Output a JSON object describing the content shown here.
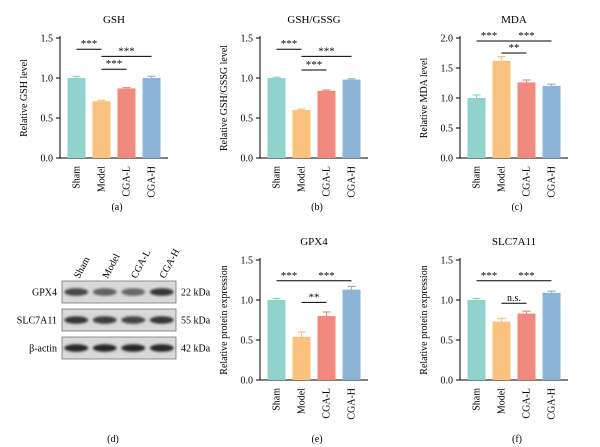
{
  "chart_data": [
    {
      "type": "bar",
      "panel_label": "(a)",
      "title": "GSH",
      "ylabel": "Relative GSH level",
      "categories": [
        "Sham",
        "Model",
        "CGA-L",
        "CGA-H"
      ],
      "values": [
        1.0,
        0.71,
        0.87,
        1.0
      ],
      "errors": [
        0.02,
        0.01,
        0.01,
        0.02
      ],
      "ylim": [
        0,
        1.5
      ],
      "yticks": [
        "0.0",
        "0.5",
        "1.0",
        "1.5"
      ],
      "significance": [
        {
          "from": 0,
          "to": 1,
          "label": "***",
          "y": 1.36
        },
        {
          "from": 1,
          "to": 2,
          "label": "***",
          "y": 1.11
        },
        {
          "from": 1,
          "to": 3,
          "label": "***",
          "y": 1.27
        }
      ]
    },
    {
      "type": "bar",
      "panel_label": "(b)",
      "title": "GSH/GSSG",
      "ylabel": "Relative GSH/GSSG level",
      "categories": [
        "Sham",
        "Model",
        "CGA-L",
        "CGA-H"
      ],
      "values": [
        1.0,
        0.6,
        0.84,
        0.98
      ],
      "errors": [
        0.01,
        0.01,
        0.01,
        0.01
      ],
      "ylim": [
        0,
        1.5
      ],
      "yticks": [
        "0.0",
        "0.5",
        "1.0",
        "1.5"
      ],
      "significance": [
        {
          "from": 0,
          "to": 1,
          "label": "***",
          "y": 1.36
        },
        {
          "from": 1,
          "to": 2,
          "label": "***",
          "y": 1.1
        },
        {
          "from": 1,
          "to": 3,
          "label": "***",
          "y": 1.27
        }
      ]
    },
    {
      "type": "bar",
      "panel_label": "(c)",
      "title": "MDA",
      "ylabel": "Relative MDA level",
      "categories": [
        "Sham",
        "Model",
        "CGA-L",
        "CGA-H"
      ],
      "values": [
        1.0,
        1.62,
        1.26,
        1.2
      ],
      "errors": [
        0.05,
        0.07,
        0.04,
        0.03
      ],
      "ylim": [
        0,
        2.0
      ],
      "yticks": [
        "0.0",
        "0.5",
        "1.0",
        "1.5",
        "2.0"
      ],
      "significance": [
        {
          "from": 0,
          "to": 1,
          "label": "***",
          "y": 1.95
        },
        {
          "from": 1,
          "to": 2,
          "label": "**",
          "y": 1.75
        },
        {
          "from": 1,
          "to": 3,
          "label": "***",
          "y": 1.95
        }
      ]
    },
    {
      "type": "bar",
      "panel_label": "(e)",
      "title": "GPX4",
      "ylabel": "Relative protein expression",
      "categories": [
        "Sham",
        "Model",
        "CGA-L",
        "CGA-H"
      ],
      "values": [
        1.0,
        0.54,
        0.8,
        1.13
      ],
      "errors": [
        0.02,
        0.06,
        0.05,
        0.04
      ],
      "ylim": [
        0,
        1.5
      ],
      "yticks": [
        "0.0",
        "0.5",
        "1.0",
        "1.5"
      ],
      "significance": [
        {
          "from": 0,
          "to": 1,
          "label": "***",
          "y": 1.24
        },
        {
          "from": 1,
          "to": 2,
          "label": "**",
          "y": 0.97
        },
        {
          "from": 1,
          "to": 3,
          "label": "***",
          "y": 1.24
        }
      ]
    },
    {
      "type": "bar",
      "panel_label": "(f)",
      "title": "SLC7A11",
      "ylabel": "Relative protein expression",
      "categories": [
        "Sham",
        "Model",
        "CGA-L",
        "CGA-H"
      ],
      "values": [
        1.0,
        0.73,
        0.83,
        1.09
      ],
      "errors": [
        0.02,
        0.04,
        0.03,
        0.02
      ],
      "ylim": [
        0,
        1.5
      ],
      "yticks": [
        "0.0",
        "0.5",
        "1.0",
        "1.5"
      ],
      "significance": [
        {
          "from": 0,
          "to": 1,
          "label": "***",
          "y": 1.24
        },
        {
          "from": 1,
          "to": 2,
          "label": "n.s.",
          "y": 0.96
        },
        {
          "from": 1,
          "to": 3,
          "label": "***",
          "y": 1.24
        }
      ]
    }
  ],
  "bar_colors": [
    "#8FD3CC",
    "#F9C27E",
    "#F08A7E",
    "#8DB4D6"
  ],
  "blot": {
    "panel_label": "(d)",
    "lanes": [
      "Sham",
      "Model",
      "CGA-L",
      "CGA-H"
    ],
    "rows": [
      {
        "name": "GPX4",
        "size": "22 kDa",
        "intensity": [
          0.8,
          0.6,
          0.55,
          0.9
        ]
      },
      {
        "name": "SLC7A11",
        "size": "55 kDa",
        "intensity": [
          0.9,
          0.85,
          0.8,
          0.9
        ]
      },
      {
        "name": "β-actin",
        "size": "42 kDa",
        "intensity": [
          1.0,
          1.0,
          1.0,
          1.0
        ]
      }
    ]
  }
}
